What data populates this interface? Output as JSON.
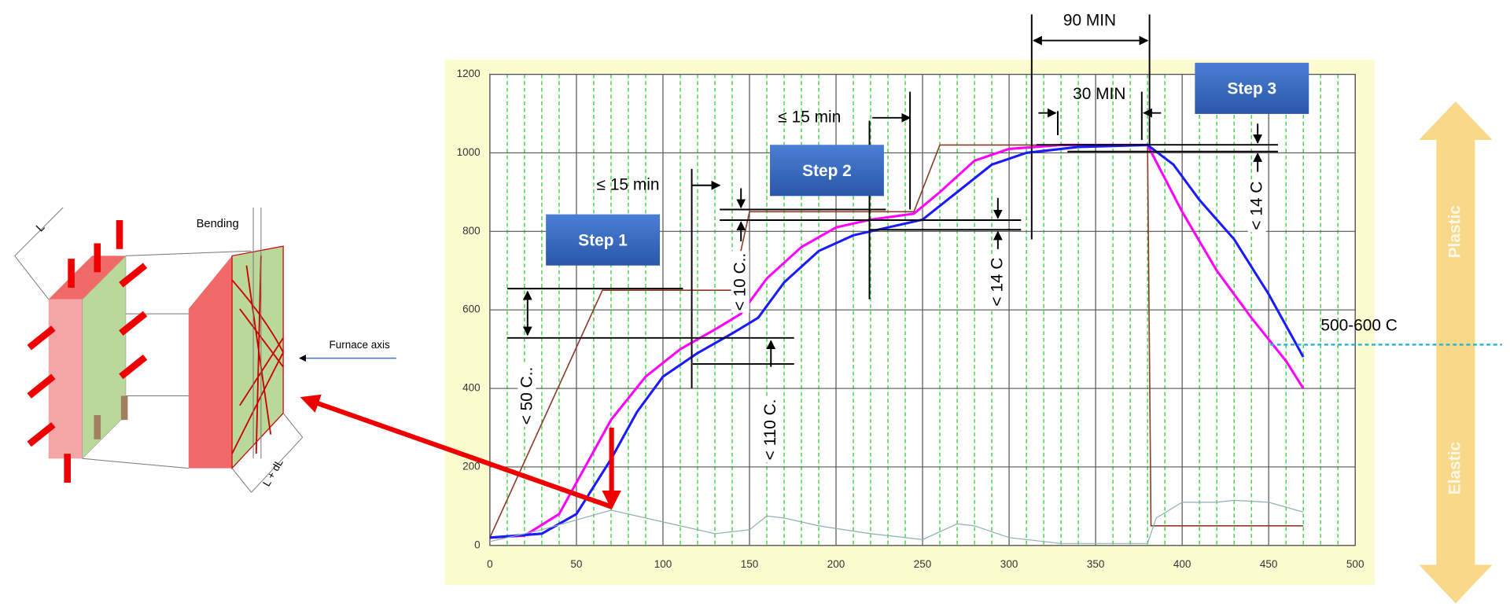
{
  "chart_data": {
    "type": "line",
    "xlim": [
      0,
      500
    ],
    "xticks": [
      0,
      50,
      100,
      150,
      200,
      250,
      300,
      350,
      400,
      450,
      500
    ],
    "ylim": [
      0,
      1200
    ],
    "yticks": [
      0,
      200,
      400,
      600,
      800,
      1000,
      1200
    ],
    "grid": true,
    "series": [
      {
        "color": "#8b3a2a",
        "x": [
          0,
          65,
          140,
          150,
          245,
          260,
          380,
          382,
          470
        ],
        "values": [
          20,
          650,
          650,
          850,
          850,
          1020,
          1020,
          50,
          50
        ]
      },
      {
        "color": "#ff00ff",
        "x": [
          0,
          20,
          40,
          55,
          70,
          90,
          110,
          130,
          145,
          160,
          180,
          200,
          220,
          245,
          260,
          280,
          300,
          330,
          380,
          400,
          420,
          440,
          460,
          470
        ],
        "values": [
          20,
          25,
          80,
          200,
          320,
          430,
          500,
          550,
          590,
          680,
          760,
          810,
          830,
          845,
          900,
          980,
          1010,
          1020,
          1020,
          850,
          700,
          580,
          470,
          400
        ]
      },
      {
        "color": "#1a1aff",
        "x": [
          0,
          30,
          50,
          70,
          85,
          100,
          120,
          140,
          155,
          170,
          190,
          210,
          230,
          250,
          270,
          290,
          310,
          340,
          380,
          395,
          410,
          430,
          450,
          460,
          470
        ],
        "values": [
          20,
          30,
          80,
          220,
          340,
          430,
          490,
          540,
          580,
          670,
          750,
          790,
          810,
          830,
          900,
          970,
          1000,
          1015,
          1020,
          970,
          880,
          780,
          640,
          560,
          480
        ]
      },
      {
        "color": "#8fb0b0",
        "x": [
          0,
          30,
          70,
          100,
          130,
          150,
          160,
          170,
          190,
          220,
          250,
          270,
          280,
          300,
          330,
          380,
          385,
          400,
          420,
          430,
          450,
          470
        ],
        "values": [
          10,
          40,
          90,
          60,
          30,
          40,
          75,
          70,
          50,
          30,
          15,
          55,
          50,
          20,
          5,
          5,
          70,
          110,
          110,
          115,
          110,
          85
        ]
      }
    ],
    "annotations": [
      "90 MIN",
      "30 MIN",
      "≤ 15 min",
      "≤ 15 min",
      "< 50 C..",
      "< 10 C..",
      "< 14 C",
      "< 110 C.",
      "< 14 C",
      "Step 1",
      "Step 2",
      "Step 3",
      "500-600 C",
      "Plastic",
      "Elastic"
    ]
  },
  "diagram": {
    "labels": [
      "L",
      "Bending",
      "Furnace axis",
      "L + dL"
    ]
  }
}
